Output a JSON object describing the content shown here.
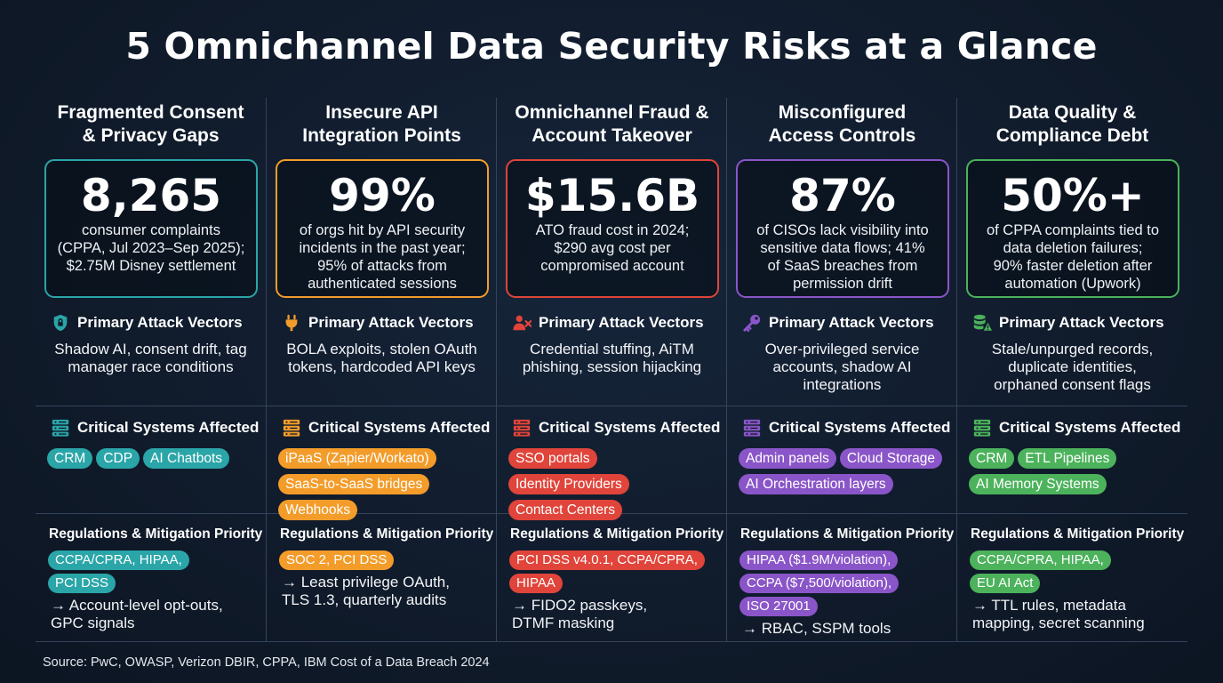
{
  "title": "5 Omnichannel Data Security Risks at a Glance",
  "vectors_heading": "Primary Attack Vectors",
  "systems_heading": "Critical Systems Affected",
  "regulations_heading": "Regulations & Mitigation Priority",
  "columns": [
    {
      "title_lines": [
        "Fragmented Consent",
        "& Privacy Gaps"
      ],
      "accent": "#2aa5a8",
      "stat": {
        "value": "8,265",
        "lines": [
          "consumer complaints",
          "(CPPA, Jul 2023–Sep 2025);",
          "$2.75M Disney settlement"
        ]
      },
      "vectors_icon": "shield-lock-icon",
      "vectors_lines": [
        "Shadow AI, consent drift, tag",
        "manager race conditions"
      ],
      "systems": [
        "CRM",
        "CDP",
        "AI Chatbots"
      ],
      "regulations": [
        "CCPA/CPRA, HIPAA,",
        "PCI DSS"
      ],
      "mitigation_lines": [
        "→ Account-level opt-outs,",
        "GPC signals"
      ]
    },
    {
      "title_lines": [
        "Insecure API",
        "Integration Points"
      ],
      "accent": "#f39c2a",
      "stat": {
        "value": "99%",
        "lines": [
          "of orgs hit by API security",
          "incidents in the past year;",
          "95% of attacks from",
          "authenticated sessions"
        ]
      },
      "vectors_icon": "plug-icon",
      "vectors_lines": [
        "BOLA exploits, stolen OAuth",
        "tokens, hardcoded API keys"
      ],
      "systems": [
        "iPaaS (Zapier/Workato)",
        "SaaS-to-SaaS bridges",
        "Webhooks"
      ],
      "regulations": [
        "SOC 2, PCI DSS"
      ],
      "mitigation_lines": [
        "→ Least privilege OAuth,",
        "TLS 1.3, quarterly audits"
      ]
    },
    {
      "title_lines": [
        "Omnichannel Fraud &",
        "Account Takeover"
      ],
      "accent": "#e0443a",
      "stat": {
        "value": "$15.6B",
        "lines": [
          "ATO fraud cost in 2024;",
          "$290 avg cost per",
          "compromised account"
        ]
      },
      "vectors_icon": "user-x-icon",
      "vectors_lines": [
        "Credential stuffing, AiTM",
        "phishing, session hijacking"
      ],
      "systems": [
        "SSO portals",
        "Identity Providers",
        "Contact Centers"
      ],
      "regulations": [
        "PCI DSS v4.0.1, CCPA/CPRA,",
        "HIPAA"
      ],
      "mitigation_lines": [
        "→ FIDO2 passkeys,",
        "DTMF masking"
      ]
    },
    {
      "title_lines": [
        "Misconfigured",
        "Access Controls"
      ],
      "accent": "#8a55c8",
      "stat": {
        "value": "87%",
        "lines": [
          "of CISOs lack visibility into",
          "sensitive data flows; 41%",
          "of SaaS breaches from",
          "permission drift"
        ]
      },
      "vectors_icon": "key-icon",
      "vectors_lines": [
        "Over-privileged service",
        "accounts, shadow AI",
        "integrations"
      ],
      "systems": [
        "Admin panels",
        "Cloud Storage",
        "AI Orchestration layers"
      ],
      "regulations": [
        "HIPAA ($1.9M/violation),",
        "CCPA ($7,500/violation),",
        "ISO 27001"
      ],
      "mitigation_lines": [
        "→ RBAC, SSPM tools"
      ]
    },
    {
      "title_lines": [
        "Data Quality &",
        "Compliance Debt"
      ],
      "accent": "#4cb25c",
      "stat": {
        "value": "50%+",
        "lines": [
          "of CPPA complaints tied to",
          "data deletion failures;",
          "90% faster deletion after",
          "automation (Upwork)"
        ]
      },
      "vectors_icon": "database-alert-icon",
      "vectors_lines": [
        "Stale/unpurged records,",
        "duplicate identities,",
        "orphaned consent flags"
      ],
      "systems": [
        "CRM",
        "ETL Pipelines",
        "AI Memory Systems"
      ],
      "regulations": [
        "CCPA/CPRA, HIPAA,",
        "EU AI Act"
      ],
      "mitigation_lines": [
        "→ TTL rules, metadata",
        "mapping, secret scanning"
      ]
    }
  ],
  "source": "Source: PwC, OWASP, Verizon DBIR, CPPA, IBM Cost of a Data Breach 2024"
}
